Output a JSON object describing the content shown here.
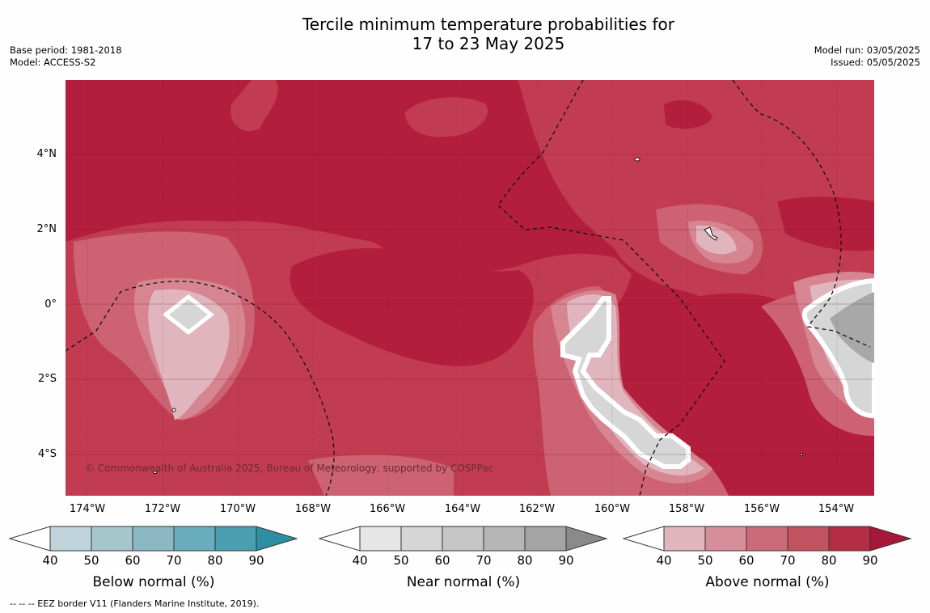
{
  "title": {
    "line1": "Tercile minimum temperature probabilities for",
    "line2": "17 to 23 May 2025"
  },
  "meta_left": {
    "base_period": "Base period: 1981-2018",
    "model": "Model: ACCESS-S2"
  },
  "meta_right": {
    "model_run": "Model run: 03/05/2025",
    "issued": "Issued: 05/05/2025"
  },
  "map": {
    "lat_labels": [
      "4°N",
      "2°N",
      "0°",
      "2°S",
      "4°S"
    ],
    "lon_labels": [
      "174°W",
      "172°W",
      "170°W",
      "168°W",
      "166°W",
      "164°W",
      "162°W",
      "160°W",
      "158°W",
      "156°W",
      "154°W"
    ],
    "copyright": "© Commonwealth of Australia 2025, Bureau of Meteorology, supported by COSPPac",
    "colors": {
      "above_80_90": "#b31e3c",
      "above_70_80": "#c23c51",
      "above_60_70": "#cc6272",
      "above_50_60": "#d68591",
      "above_40_50": "#e0b5bd",
      "near_40_50": "#d6d6d6",
      "near_60_80": "#a8a8a8"
    }
  },
  "colorbars": [
    {
      "label": "Below normal (%)",
      "ticks": [
        "40",
        "50",
        "60",
        "70",
        "80",
        "90"
      ],
      "colors": [
        "#ffffff",
        "#bed3da",
        "#a7c6cc",
        "#8bb8c3",
        "#6aaebd",
        "#4a9eaf",
        "#2d8fa3"
      ]
    },
    {
      "label": "Near normal (%)",
      "ticks": [
        "40",
        "50",
        "60",
        "70",
        "80",
        "90"
      ],
      "colors": [
        "#ffffff",
        "#e6e6e6",
        "#d6d6d6",
        "#c6c6c6",
        "#b6b6b6",
        "#a4a4a4",
        "#8a8a8a"
      ]
    },
    {
      "label": "Above normal (%)",
      "ticks": [
        "40",
        "50",
        "60",
        "70",
        "80",
        "90"
      ],
      "colors": [
        "#ffffff",
        "#e0b5bd",
        "#d68e99",
        "#cb6b79",
        "#c1525f",
        "#b32d44",
        "#a8163a"
      ]
    }
  ],
  "footnote": "-- -- -- EEZ border V11 (Flanders Marine Institute, 2019)."
}
